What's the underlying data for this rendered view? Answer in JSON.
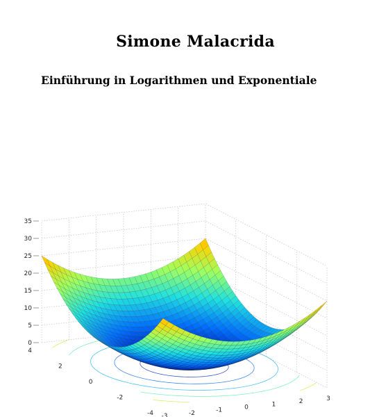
{
  "cover": {
    "author": "Simone Malacrida",
    "title": "Einführung in Logarithmen und Exponentiale"
  },
  "chart_data": {
    "type": "surface",
    "function": "z = x^2 + y^2",
    "x_range": [
      -4,
      4
    ],
    "y_range": [
      -3,
      3
    ],
    "zlim": [
      0,
      35
    ],
    "z_ticks": [
      "0",
      "5",
      "10",
      "15",
      "20",
      "25",
      "30",
      "35"
    ],
    "x_ticks": [
      "4",
      "2",
      "0",
      "-2",
      "-4"
    ],
    "y_ticks": [
      "-3",
      "-2",
      "-1",
      "0",
      "1",
      "2",
      "3"
    ],
    "colormap": [
      "#00008f",
      "#0070ff",
      "#20e0e0",
      "#9fff60",
      "#ffd000",
      "#ff4000",
      "#a00000"
    ],
    "contours_on_floor": true,
    "grid": "on"
  }
}
